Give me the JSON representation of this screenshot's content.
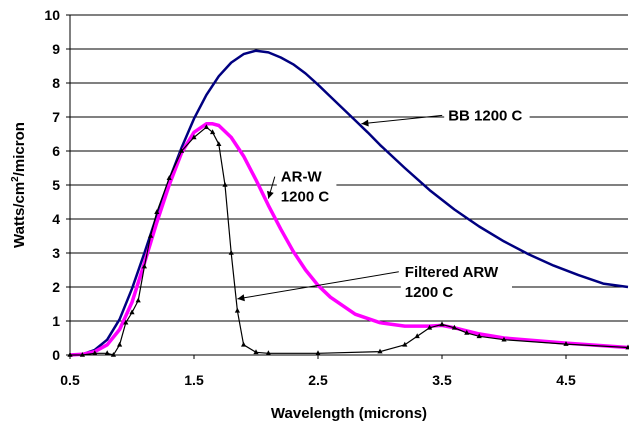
{
  "chart_data": {
    "type": "line",
    "title": "",
    "xlabel": "Wavelength (microns)",
    "ylabel_main": "Watts/cm",
    "ylabel_sup": "2",
    "ylabel_rest": "/micron",
    "xlim": [
      0.5,
      5.0
    ],
    "ylim": [
      0,
      10
    ],
    "xticks": [
      0.5,
      1.5,
      2.5,
      3.5,
      4.5
    ],
    "yticks": [
      0,
      1,
      2,
      3,
      4,
      5,
      6,
      7,
      8,
      9,
      10
    ],
    "grid": "horizontal",
    "legend": "none",
    "series": [
      {
        "name": "BB 1200 C",
        "color": "#000080",
        "marker": "none",
        "x": [
          0.5,
          0.6,
          0.7,
          0.8,
          0.9,
          1.0,
          1.1,
          1.2,
          1.3,
          1.4,
          1.5,
          1.6,
          1.7,
          1.8,
          1.9,
          2.0,
          2.1,
          2.2,
          2.3,
          2.4,
          2.5,
          2.6,
          2.7,
          2.8,
          2.9,
          3.0,
          3.2,
          3.4,
          3.6,
          3.8,
          4.0,
          4.2,
          4.4,
          4.6,
          4.8,
          5.0
        ],
        "y": [
          0.0,
          0.02,
          0.15,
          0.45,
          1.05,
          1.95,
          3.0,
          4.1,
          5.15,
          6.1,
          6.95,
          7.65,
          8.2,
          8.6,
          8.85,
          8.95,
          8.9,
          8.75,
          8.55,
          8.28,
          7.95,
          7.6,
          7.25,
          6.9,
          6.55,
          6.18,
          5.5,
          4.85,
          4.28,
          3.78,
          3.34,
          2.96,
          2.63,
          2.35,
          2.1,
          2.0
        ]
      },
      {
        "name": "AR-W 1200 C",
        "color": "#ff00ff",
        "marker": "none",
        "x": [
          0.5,
          0.6,
          0.7,
          0.8,
          0.9,
          1.0,
          1.1,
          1.2,
          1.3,
          1.4,
          1.5,
          1.6,
          1.65,
          1.7,
          1.8,
          1.9,
          2.0,
          2.1,
          2.2,
          2.3,
          2.4,
          2.5,
          2.6,
          2.8,
          3.0,
          3.2,
          3.4,
          3.5,
          3.6,
          3.8,
          4.0,
          4.5,
          5.0
        ],
        "y": [
          0.0,
          0.02,
          0.1,
          0.3,
          0.75,
          1.55,
          2.7,
          3.9,
          5.0,
          5.95,
          6.55,
          6.8,
          6.8,
          6.75,
          6.4,
          5.85,
          5.15,
          4.4,
          3.7,
          3.05,
          2.5,
          2.05,
          1.7,
          1.2,
          0.95,
          0.85,
          0.85,
          0.87,
          0.8,
          0.62,
          0.5,
          0.35,
          0.22
        ]
      },
      {
        "name": "Filtered ARW 1200 C",
        "color": "#000000",
        "marker": "triangle",
        "x": [
          0.5,
          0.6,
          0.7,
          0.8,
          0.85,
          0.9,
          0.95,
          1.0,
          1.05,
          1.1,
          1.15,
          1.2,
          1.3,
          1.4,
          1.5,
          1.6,
          1.65,
          1.7,
          1.75,
          1.8,
          1.85,
          1.9,
          2.0,
          2.1,
          2.5,
          3.0,
          3.2,
          3.3,
          3.4,
          3.5,
          3.6,
          3.7,
          3.8,
          4.0,
          4.5,
          5.0
        ],
        "y": [
          0.0,
          0.0,
          0.05,
          0.05,
          0.0,
          0.3,
          0.95,
          1.25,
          1.6,
          2.6,
          3.5,
          4.2,
          5.2,
          6.0,
          6.4,
          6.7,
          6.55,
          6.2,
          5.0,
          3.0,
          1.3,
          0.3,
          0.08,
          0.05,
          0.05,
          0.1,
          0.3,
          0.55,
          0.8,
          0.9,
          0.8,
          0.65,
          0.55,
          0.45,
          0.32,
          0.22
        ]
      }
    ],
    "annotations": [
      {
        "lines": [
          "BB 1200 C"
        ],
        "x": 3.55,
        "y": 6.9,
        "arrow_to": [
          2.85,
          6.8
        ]
      },
      {
        "lines": [
          "AR-W",
          "1200 C"
        ],
        "x": 2.2,
        "y": 5.1,
        "arrow_to": [
          2.1,
          4.6
        ]
      },
      {
        "lines": [
          "Filtered ARW",
          "1200 C"
        ],
        "x": 3.2,
        "y": 2.3,
        "arrow_to": [
          1.85,
          1.65
        ]
      }
    ]
  }
}
